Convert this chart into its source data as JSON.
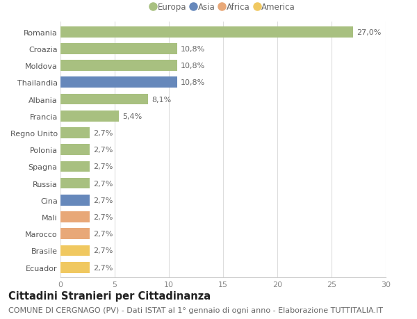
{
  "countries": [
    "Romania",
    "Croazia",
    "Moldova",
    "Thailandia",
    "Albania",
    "Francia",
    "Regno Unito",
    "Polonia",
    "Spagna",
    "Russia",
    "Cina",
    "Mali",
    "Marocco",
    "Brasile",
    "Ecuador"
  ],
  "values": [
    27.0,
    10.8,
    10.8,
    10.8,
    8.1,
    5.4,
    2.7,
    2.7,
    2.7,
    2.7,
    2.7,
    2.7,
    2.7,
    2.7,
    2.7
  ],
  "labels": [
    "27,0%",
    "10,8%",
    "10,8%",
    "10,8%",
    "8,1%",
    "5,4%",
    "2,7%",
    "2,7%",
    "2,7%",
    "2,7%",
    "2,7%",
    "2,7%",
    "2,7%",
    "2,7%",
    "2,7%"
  ],
  "continents": [
    "Europa",
    "Europa",
    "Europa",
    "Asia",
    "Europa",
    "Europa",
    "Europa",
    "Europa",
    "Europa",
    "Europa",
    "Asia",
    "Africa",
    "Africa",
    "America",
    "America"
  ],
  "colors": {
    "Europa": "#a8c080",
    "Asia": "#6688bb",
    "Africa": "#e8a878",
    "America": "#f0c860"
  },
  "legend_order": [
    "Europa",
    "Asia",
    "Africa",
    "America"
  ],
  "xlim": [
    0,
    30
  ],
  "xticks": [
    0,
    5,
    10,
    15,
    20,
    25,
    30
  ],
  "background_color": "#ffffff",
  "bar_height": 0.65,
  "title": "Cittadini Stranieri per Cittadinanza",
  "subtitle": "COMUNE DI CERGNAGO (PV) - Dati ISTAT al 1° gennaio di ogni anno - Elaborazione TUTTITALIA.IT",
  "title_fontsize": 10.5,
  "subtitle_fontsize": 8,
  "label_fontsize": 8,
  "tick_fontsize": 8,
  "legend_fontsize": 8.5
}
